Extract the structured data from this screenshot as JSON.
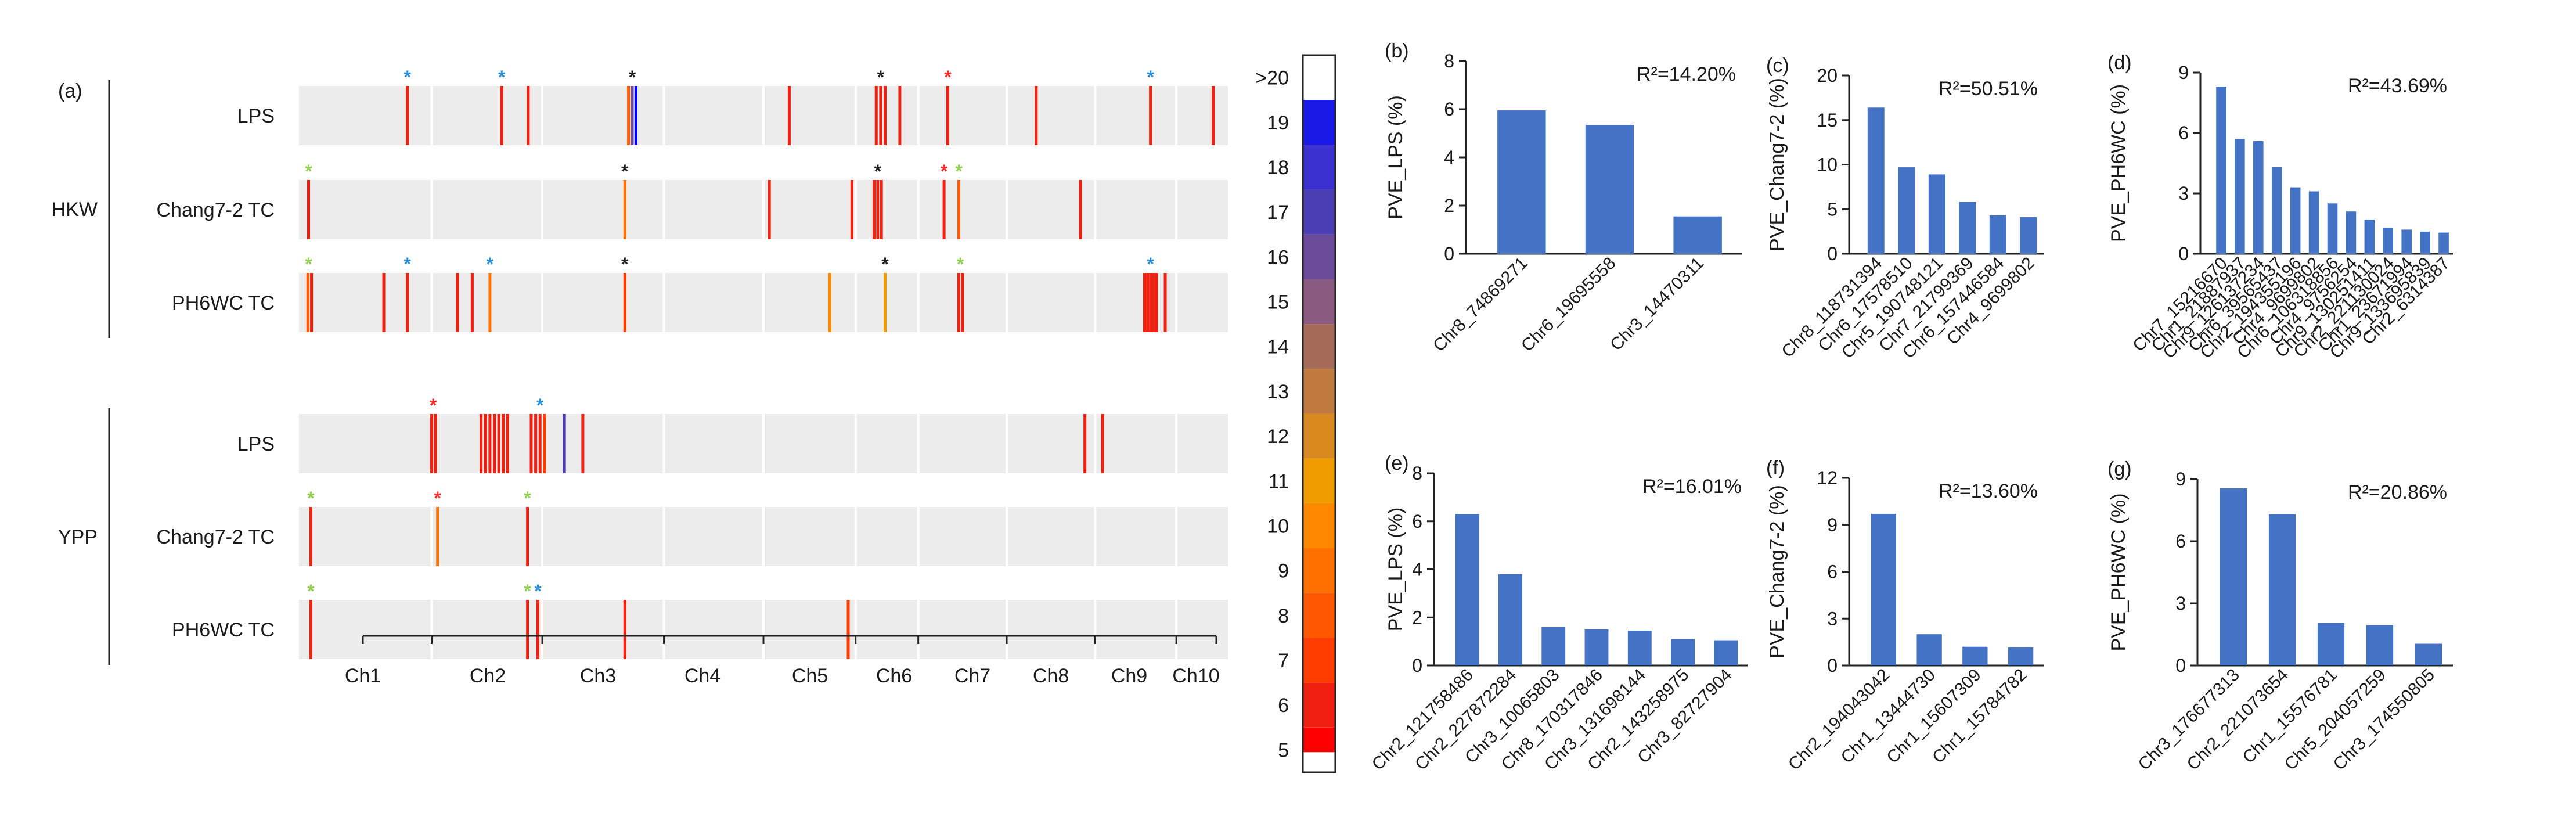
{
  "chart_data": [
    {
      "panel": "(a)",
      "type": "heatmap",
      "groups": [
        {
          "name": "HKW",
          "tracks": [
            {
              "label": "LPS",
              "marks": [
                {
                  "pos": 5.37,
                  "value": 6
                },
                {
                  "pos": 6.65,
                  "value": 6
                },
                {
                  "pos": 7.01,
                  "value": 6
                },
                {
                  "pos": 8.37,
                  "value": 8
                },
                {
                  "pos": 8.42,
                  "value": 16
                },
                {
                  "pos": 8.47,
                  "value": 20
                },
                {
                  "pos": 10.55,
                  "value": 6
                },
                {
                  "pos": 11.73,
                  "value": 6
                },
                {
                  "pos": 11.79,
                  "value": 6
                },
                {
                  "pos": 11.85,
                  "value": 6
                },
                {
                  "pos": 12.05,
                  "value": 6
                },
                {
                  "pos": 12.7,
                  "value": 6
                },
                {
                  "pos": 13.9,
                  "value": 6
                },
                {
                  "pos": 15.45,
                  "value": 6
                },
                {
                  "pos": 16.3,
                  "value": 6
                }
              ],
              "stars": [
                {
                  "pos": 5.37,
                  "color": "blue"
                },
                {
                  "pos": 6.65,
                  "color": "blue"
                },
                {
                  "pos": 8.42,
                  "color": "black"
                },
                {
                  "pos": 11.79,
                  "color": "black"
                },
                {
                  "pos": 12.7,
                  "color": "red"
                },
                {
                  "pos": 15.45,
                  "color": "blue"
                }
              ]
            },
            {
              "label": "Chang7-2 TC",
              "marks": [
                {
                  "pos": 4.03,
                  "value": 6
                },
                {
                  "pos": 8.32,
                  "value": 9
                },
                {
                  "pos": 10.28,
                  "value": 6
                },
                {
                  "pos": 11.4,
                  "value": 6
                },
                {
                  "pos": 11.7,
                  "value": 6
                },
                {
                  "pos": 11.75,
                  "value": 6
                },
                {
                  "pos": 11.8,
                  "value": 6
                },
                {
                  "pos": 12.65,
                  "value": 6
                },
                {
                  "pos": 12.85,
                  "value": 8
                },
                {
                  "pos": 14.5,
                  "value": 6
                }
              ],
              "stars": [
                {
                  "pos": 4.03,
                  "color": "green"
                },
                {
                  "pos": 8.32,
                  "color": "black"
                },
                {
                  "pos": 11.75,
                  "color": "black"
                },
                {
                  "pos": 12.65,
                  "color": "red"
                },
                {
                  "pos": 12.85,
                  "color": "green"
                }
              ]
            },
            {
              "label": "PH6WC TC",
              "marks": [
                {
                  "pos": 4.02,
                  "value": 8
                },
                {
                  "pos": 4.07,
                  "value": 6
                },
                {
                  "pos": 5.05,
                  "value": 6
                },
                {
                  "pos": 5.37,
                  "value": 6
                },
                {
                  "pos": 6.05,
                  "value": 6
                },
                {
                  "pos": 6.25,
                  "value": 6
                },
                {
                  "pos": 6.49,
                  "value": 9
                },
                {
                  "pos": 8.32,
                  "value": 7
                },
                {
                  "pos": 11.1,
                  "value": 10
                },
                {
                  "pos": 11.85,
                  "value": 11
                },
                {
                  "pos": 12.85,
                  "value": 6
                },
                {
                  "pos": 12.9,
                  "value": 6
                },
                {
                  "pos": 15.37,
                  "value": 6
                },
                {
                  "pos": 15.41,
                  "value": 6
                },
                {
                  "pos": 15.45,
                  "value": 6
                },
                {
                  "pos": 15.49,
                  "value": 6
                },
                {
                  "pos": 15.53,
                  "value": 6
                },
                {
                  "pos": 15.65,
                  "value": 6
                }
              ],
              "stars": [
                {
                  "pos": 4.03,
                  "color": "green"
                },
                {
                  "pos": 5.37,
                  "color": "blue"
                },
                {
                  "pos": 6.49,
                  "color": "blue"
                },
                {
                  "pos": 8.32,
                  "color": "black"
                },
                {
                  "pos": 11.85,
                  "color": "black"
                },
                {
                  "pos": 12.87,
                  "color": "green"
                },
                {
                  "pos": 15.45,
                  "color": "blue"
                }
              ]
            }
          ]
        },
        {
          "name": "YPP",
          "tracks": [
            {
              "label": "LPS",
              "marks": [
                {
                  "pos": 5.7,
                  "value": 6
                },
                {
                  "pos": 5.75,
                  "value": 6
                },
                {
                  "pos": 6.37,
                  "value": 6
                },
                {
                  "pos": 6.43,
                  "value": 6
                },
                {
                  "pos": 6.49,
                  "value": 6
                },
                {
                  "pos": 6.55,
                  "value": 6
                },
                {
                  "pos": 6.61,
                  "value": 6
                },
                {
                  "pos": 6.67,
                  "value": 6
                },
                {
                  "pos": 6.73,
                  "value": 6
                },
                {
                  "pos": 7.05,
                  "value": 6
                },
                {
                  "pos": 7.11,
                  "value": 6
                },
                {
                  "pos": 7.17,
                  "value": 6
                },
                {
                  "pos": 7.23,
                  "value": 7
                },
                {
                  "pos": 7.5,
                  "value": 17
                },
                {
                  "pos": 7.75,
                  "value": 6
                },
                {
                  "pos": 14.56,
                  "value": 6
                },
                {
                  "pos": 14.8,
                  "value": 6
                }
              ],
              "stars": [
                {
                  "pos": 5.72,
                  "color": "red"
                },
                {
                  "pos": 7.17,
                  "color": "blue"
                }
              ]
            },
            {
              "label": "Chang7-2 TC",
              "marks": [
                {
                  "pos": 4.06,
                  "value": 6
                },
                {
                  "pos": 5.78,
                  "value": 9
                },
                {
                  "pos": 7.0,
                  "value": 6
                }
              ],
              "stars": [
                {
                  "pos": 4.06,
                  "color": "green"
                },
                {
                  "pos": 5.78,
                  "color": "red"
                },
                {
                  "pos": 7.0,
                  "color": "green"
                }
              ]
            },
            {
              "label": "PH6WC TC",
              "marks": [
                {
                  "pos": 4.06,
                  "value": 6
                },
                {
                  "pos": 7.0,
                  "value": 6
                },
                {
                  "pos": 7.14,
                  "value": 6
                },
                {
                  "pos": 8.32,
                  "value": 6
                },
                {
                  "pos": 11.35,
                  "value": 7
                }
              ],
              "stars": [
                {
                  "pos": 4.06,
                  "color": "green"
                },
                {
                  "pos": 7.0,
                  "color": "green"
                },
                {
                  "pos": 7.14,
                  "color": "blue"
                }
              ]
            }
          ]
        }
      ],
      "chromosomes": [
        "Ch1",
        "Ch2",
        "Ch3",
        "Ch4",
        "Ch5",
        "Ch6",
        "Ch7",
        "Ch8",
        "Ch9",
        "Ch10"
      ],
      "chrom_boundaries": [
        5.7,
        7.2,
        8.85,
        10.2,
        11.45,
        12.3,
        13.5,
        14.7,
        15.8
      ],
      "axis_range": [
        3.9,
        16.5
      ],
      "colorbar": {
        "labels": [
          ">20",
          "19",
          "18",
          "17",
          "16",
          "15",
          "14",
          "13",
          "12",
          "11",
          "10",
          "9",
          "8",
          "7",
          "6",
          "5"
        ],
        "colors": {
          "20": "#0000ff",
          "19": "#1a1ae8",
          "18": "#3a31d0",
          "17": "#4b3db4",
          "16": "#6b4a9a",
          "15": "#8a5a80",
          "14": "#a56a58",
          "13": "#c07a40",
          "12": "#d88a20",
          "11": "#f09b00",
          "10": "#ff8800",
          "9": "#ff7000",
          "8": "#ff5800",
          "7": "#ff3c00",
          "6": "#f02010",
          "5": "#ff0000"
        }
      },
      "star_colors": {
        "blue": "#2a8fd6",
        "black": "#222222",
        "red": "#ff2b2b",
        "green": "#92d050"
      }
    },
    {
      "panel": "(b)",
      "type": "bar",
      "r2": "R²=14.20%",
      "ylabel": "PVE_LPS (%)",
      "ylim": [
        0,
        8
      ],
      "yticks": [
        0,
        2,
        4,
        6,
        8
      ],
      "categories": [
        "Chr8_74869271",
        "Chr6_19695558",
        "Chr3_14470311"
      ],
      "values": [
        5.95,
        5.35,
        1.55
      ]
    },
    {
      "panel": "(c)",
      "type": "bar",
      "r2": "R²=50.51%",
      "ylabel": "PVE_Chang7-2 (%)",
      "ylim": [
        0,
        20
      ],
      "yticks": [
        0,
        5,
        10,
        15,
        20
      ],
      "categories": [
        "Chr8_118731394",
        "Chr6_17578510",
        "Chr5_190748121",
        "Chr7_21799369",
        "Chr6_157446584",
        "Chr4_9699802"
      ],
      "values": [
        16.4,
        9.7,
        8.9,
        5.8,
        4.3,
        4.1
      ]
    },
    {
      "panel": "(d)",
      "type": "bar",
      "r2": "R²=43.69%",
      "ylabel": "PVE_PH6WC (%)",
      "ylim": [
        0,
        9
      ],
      "yticks": [
        0,
        3,
        6,
        9
      ],
      "categories": [
        "Chr7_15216670",
        "Chr1_21887937",
        "Chr9_126137234",
        "Chr6_39565437",
        "Chr2_194355196",
        "Chr4_9699802",
        "Chr6_106318856",
        "Chr4_9756254",
        "Chr9_130251411",
        "Chr2_221130024",
        "Chr1_23671994",
        "Chr9_133695839",
        "Chr2_6314387"
      ],
      "values": [
        8.3,
        5.7,
        5.6,
        4.3,
        3.3,
        3.1,
        2.5,
        2.1,
        1.7,
        1.3,
        1.2,
        1.1,
        1.05
      ]
    },
    {
      "panel": "(e)",
      "type": "bar",
      "r2": "R²=16.01%",
      "ylabel": "PVE_LPS (%)",
      "ylim": [
        0,
        8
      ],
      "yticks": [
        0,
        2,
        4,
        6,
        8
      ],
      "categories": [
        "Chr2_121758486",
        "Chr2_227872284",
        "Chr3_10065803",
        "Chr8_170317846",
        "Chr3_131698144",
        "Chr2_143258975",
        "Chr3_82727904"
      ],
      "values": [
        6.3,
        3.8,
        1.6,
        1.5,
        1.45,
        1.1,
        1.05
      ]
    },
    {
      "panel": "(f)",
      "type": "bar",
      "r2": "R²=13.60%",
      "ylabel": "PVE_Chang7-2 (%)",
      "ylim": [
        0,
        12
      ],
      "yticks": [
        0,
        3,
        6,
        9,
        12
      ],
      "categories": [
        "Chr2_194043042",
        "Chr1_13444730",
        "Chr1_15607309",
        "Chr1_15784782"
      ],
      "values": [
        9.7,
        2.0,
        1.2,
        1.15
      ]
    },
    {
      "panel": "(g)",
      "type": "bar",
      "r2": "R²=20.86%",
      "ylabel": "PVE_PH6WC (%)",
      "ylim": [
        0,
        9
      ],
      "yticks": [
        0,
        3,
        6,
        9
      ],
      "categories": [
        "Chr3_176677313",
        "Chr2_221073654",
        "Chr1_15576781",
        "Chr5_204057259",
        "Chr3_174550805"
      ],
      "values": [
        8.55,
        7.3,
        2.05,
        1.95,
        1.05
      ]
    }
  ]
}
